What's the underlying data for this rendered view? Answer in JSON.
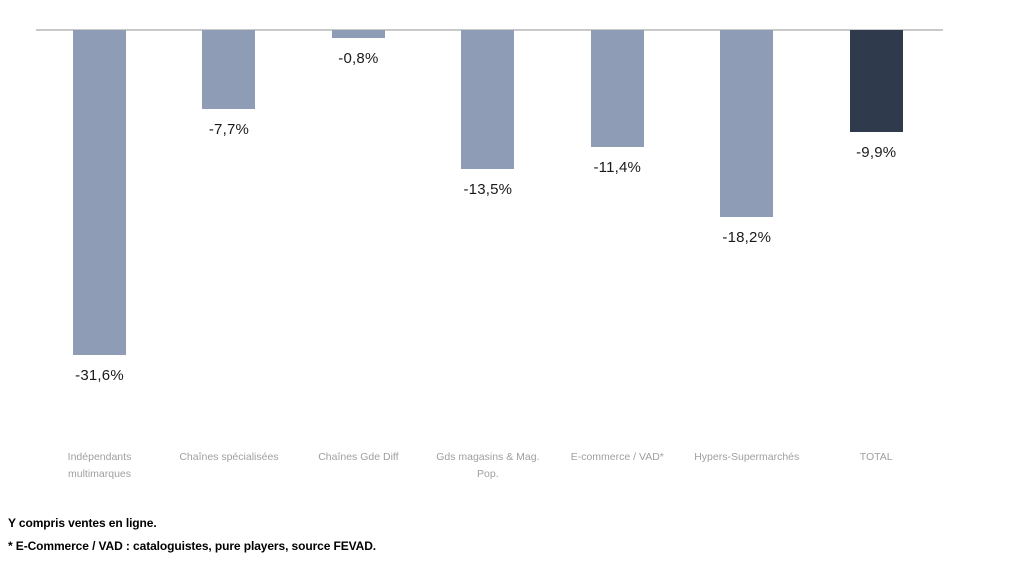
{
  "chart_data": {
    "type": "bar",
    "categories": [
      "Indépendants multimarques",
      "Chaînes spécialisées",
      "Chaînes Gde Diff",
      "Gds magasins & Mag. Pop.",
      "E-commerce / VAD*",
      "Hypers-Supermarchés",
      "TOTAL"
    ],
    "values": [
      -31.6,
      -7.7,
      -0.8,
      -13.5,
      -11.4,
      -18.2,
      -9.9
    ],
    "value_labels": [
      "-31,6%",
      "-7,7%",
      "-0,8%",
      "-13,5%",
      "-11,4%",
      "-18,2%",
      "-9,9%"
    ],
    "title": "",
    "xlabel": "",
    "ylabel": "",
    "ylim": [
      -35,
      0
    ],
    "grid": false,
    "legend": false,
    "colors": {
      "bar": "#8e9cb5",
      "total_bar": "#2f3a4d",
      "baseline": "#c9c9c9",
      "category_label": "#9f9f9f",
      "value_label": "#1a1a1a"
    }
  },
  "footnotes": {
    "line1": "Y compris ventes en ligne.",
    "line2": "* E-Commerce / VAD : cataloguistes, pure players, source FEVAD."
  }
}
